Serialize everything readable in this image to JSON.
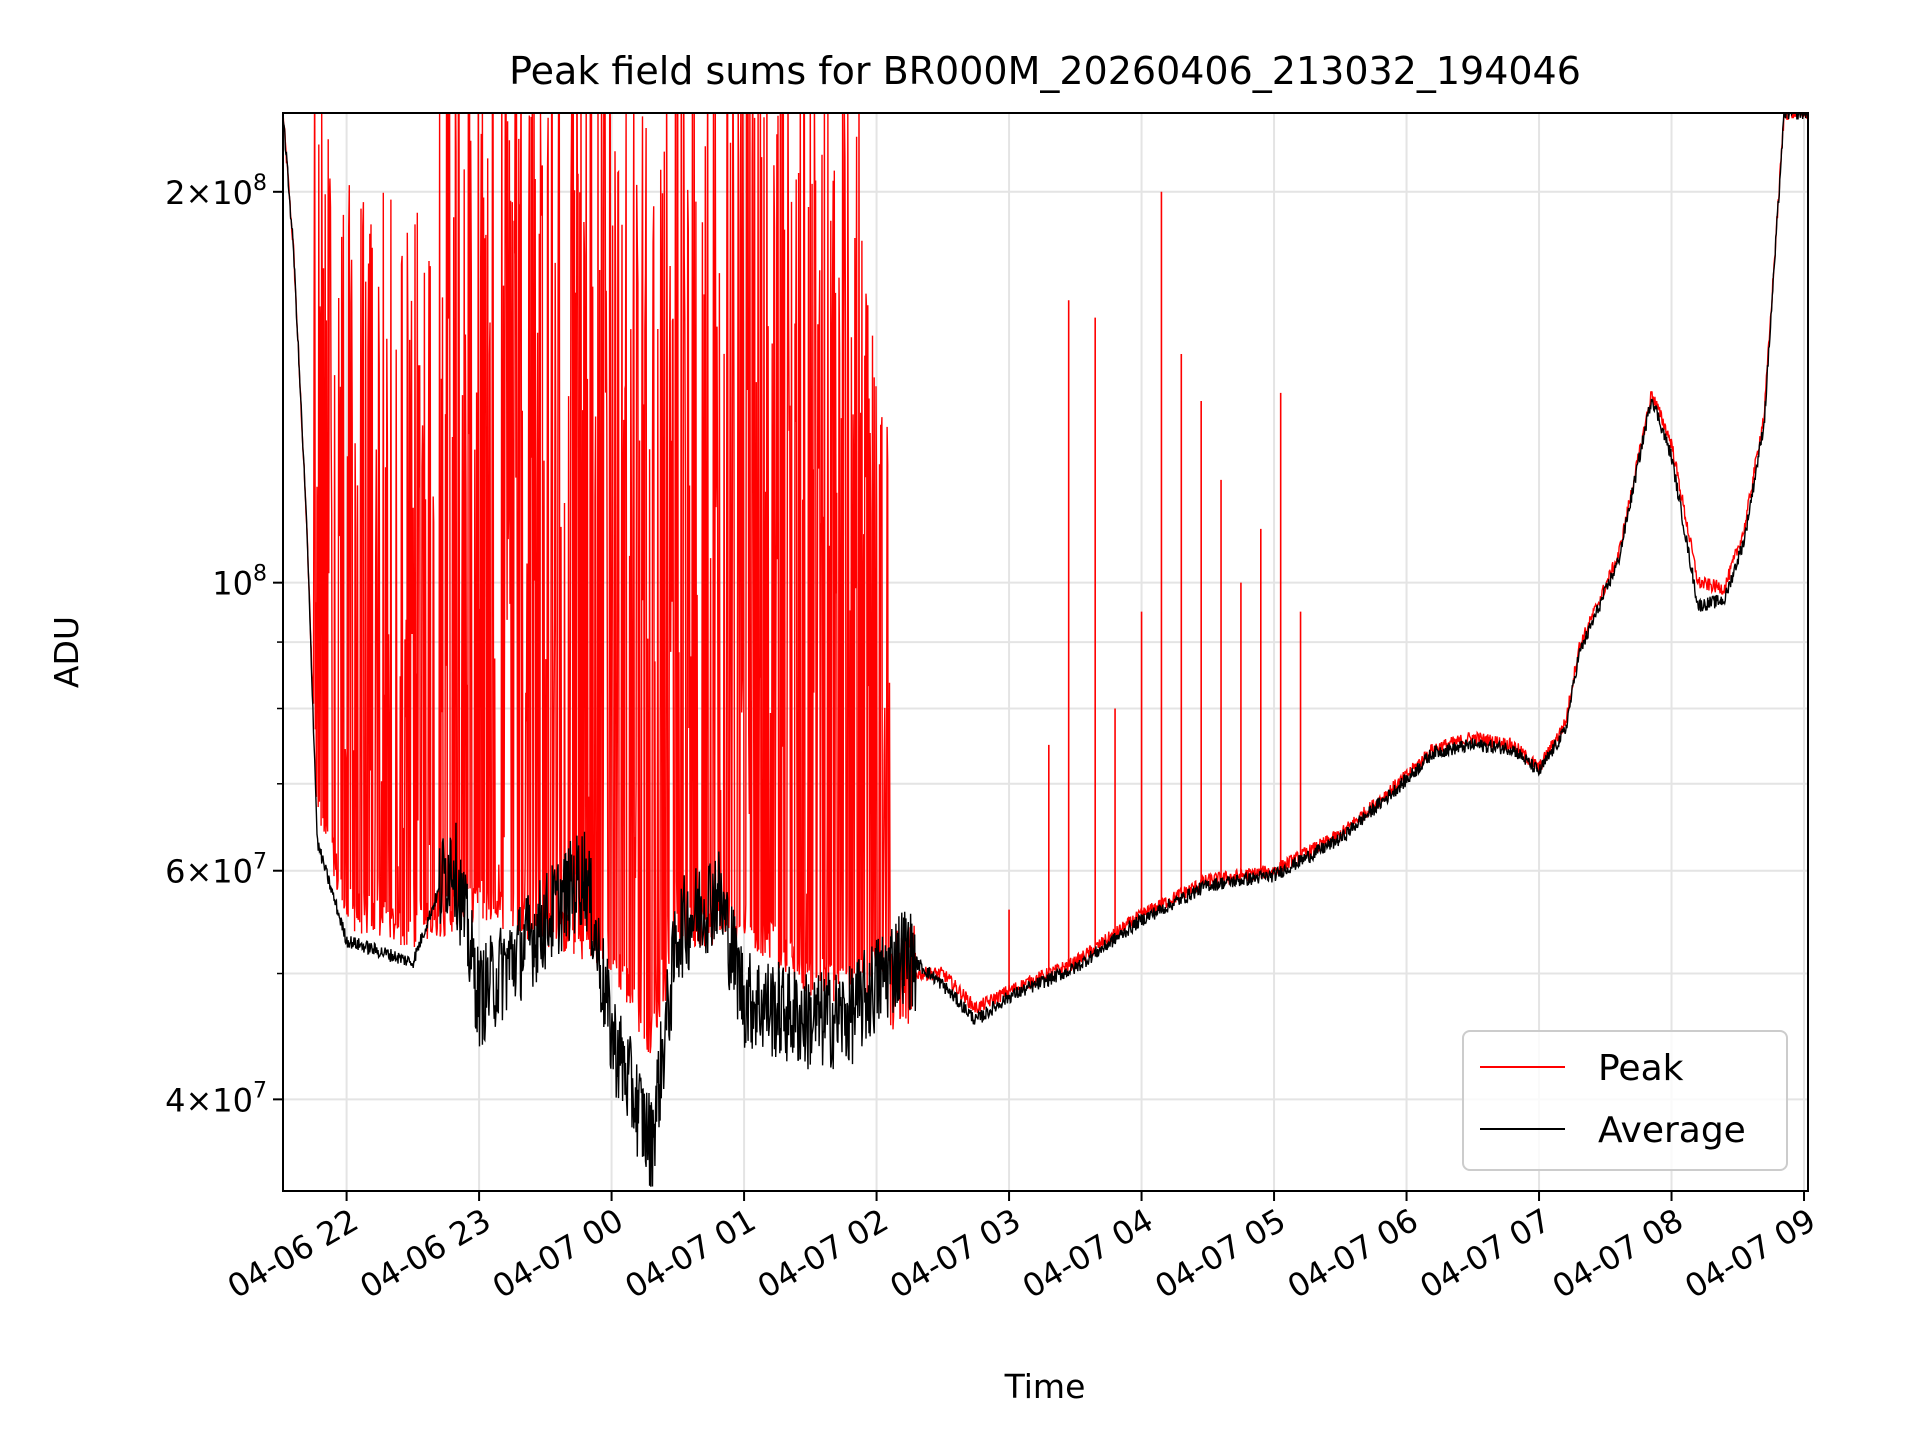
{
  "chart_data": {
    "type": "line",
    "title": "Peak field sums for BR000M_20260406_213032_194046",
    "xlabel": "Time",
    "ylabel": "ADU",
    "yscale": "log",
    "xlim_hours": [
      -0.48,
      11.03
    ],
    "ylim": [
      34000000,
      230000000
    ],
    "grid": true,
    "legend_position": "lower right",
    "x_ticks": [
      {
        "label": "04-06 22",
        "hours": 0
      },
      {
        "label": "04-06 23",
        "hours": 1
      },
      {
        "label": "04-07 00",
        "hours": 2
      },
      {
        "label": "04-07 01",
        "hours": 3
      },
      {
        "label": "04-07 02",
        "hours": 4
      },
      {
        "label": "04-07 03",
        "hours": 5
      },
      {
        "label": "04-07 04",
        "hours": 6
      },
      {
        "label": "04-07 05",
        "hours": 7
      },
      {
        "label": "04-07 06",
        "hours": 8
      },
      {
        "label": "04-07 07",
        "hours": 9
      },
      {
        "label": "04-07 08",
        "hours": 10
      },
      {
        "label": "04-07 09",
        "hours": 11
      }
    ],
    "y_ticks": [
      {
        "value": 40000000,
        "base": "4",
        "exp": "7"
      },
      {
        "value": 60000000,
        "base": "6",
        "exp": "7"
      },
      {
        "value": 100000000,
        "base": "",
        "exp": "8"
      },
      {
        "value": 200000000,
        "base": "2",
        "exp": "8"
      }
    ],
    "y_minor_ticks": [
      50000000,
      70000000,
      80000000,
      90000000,
      300000000
    ],
    "series": [
      {
        "name": "Peak",
        "color": "#ff0000",
        "envelope": [
          [
            -0.48,
            230000000
          ],
          [
            -0.4,
            180000000
          ],
          [
            -0.3,
            110000000
          ],
          [
            -0.22,
            65000000
          ],
          [
            0.0,
            54000000
          ],
          [
            0.5,
            52000000
          ],
          [
            1.0,
            55000000
          ],
          [
            2.0,
            50000000
          ],
          [
            2.3,
            43000000
          ],
          [
            2.5,
            52000000
          ],
          [
            3.0,
            53000000
          ],
          [
            3.5,
            48000000
          ],
          [
            3.8,
            47000000
          ],
          [
            4.2,
            50000000
          ],
          [
            4.5,
            50000000
          ],
          [
            4.75,
            47000000
          ],
          [
            5.0,
            48500000
          ],
          [
            5.5,
            51000000
          ],
          [
            6.0,
            55500000
          ],
          [
            6.5,
            59000000
          ],
          [
            7.0,
            60000000
          ],
          [
            7.5,
            64000000
          ],
          [
            8.0,
            71000000
          ],
          [
            8.2,
            74500000
          ],
          [
            8.5,
            76000000
          ],
          [
            8.8,
            75000000
          ],
          [
            9.0,
            72000000
          ],
          [
            9.2,
            78000000
          ],
          [
            9.3,
            89000000
          ],
          [
            9.6,
            105000000
          ],
          [
            9.85,
            140000000
          ],
          [
            10.0,
            128000000
          ],
          [
            10.2,
            100000000
          ],
          [
            10.4,
            99000000
          ],
          [
            10.55,
            110000000
          ],
          [
            10.7,
            135000000
          ],
          [
            10.85,
            230000000
          ],
          [
            11.0,
            230000000
          ]
        ],
        "spikes_hours": [
          5.0,
          5.3,
          5.45,
          5.65,
          5.8,
          6.0,
          6.15,
          6.3,
          6.45,
          6.6,
          6.75,
          6.9,
          7.05,
          7.2
        ],
        "spike_values": [
          56000000,
          75000000,
          165000000,
          160000000,
          80000000,
          95000000,
          200000000,
          150000000,
          138000000,
          120000000,
          100000000,
          110000000,
          140000000,
          95000000
        ]
      },
      {
        "name": "Average",
        "color": "#000000",
        "envelope": [
          [
            -0.48,
            230000000
          ],
          [
            -0.4,
            180000000
          ],
          [
            -0.3,
            110000000
          ],
          [
            -0.22,
            63000000
          ],
          [
            0.0,
            53000000
          ],
          [
            0.5,
            51000000
          ],
          [
            0.8,
            62000000
          ],
          [
            1.0,
            48000000
          ],
          [
            1.5,
            55000000
          ],
          [
            1.8,
            60000000
          ],
          [
            2.0,
            45000000
          ],
          [
            2.3,
            37000000
          ],
          [
            2.5,
            54000000
          ],
          [
            2.8,
            58000000
          ],
          [
            3.0,
            48000000
          ],
          [
            3.5,
            46000000
          ],
          [
            3.8,
            46500000
          ],
          [
            4.2,
            52000000
          ],
          [
            4.5,
            49000000
          ],
          [
            4.75,
            46000000
          ],
          [
            5.0,
            48000000
          ],
          [
            5.5,
            50500000
          ],
          [
            6.0,
            55000000
          ],
          [
            6.5,
            58500000
          ],
          [
            7.0,
            59500000
          ],
          [
            7.5,
            63500000
          ],
          [
            8.0,
            70500000
          ],
          [
            8.2,
            74000000
          ],
          [
            8.5,
            75000000
          ],
          [
            8.8,
            74500000
          ],
          [
            9.0,
            71500000
          ],
          [
            9.2,
            77000000
          ],
          [
            9.3,
            88000000
          ],
          [
            9.6,
            104000000
          ],
          [
            9.85,
            139000000
          ],
          [
            10.0,
            125000000
          ],
          [
            10.2,
            96000000
          ],
          [
            10.4,
            97000000
          ],
          [
            10.55,
            108000000
          ],
          [
            10.7,
            133000000
          ],
          [
            10.85,
            230000000
          ],
          [
            11.0,
            230000000
          ]
        ]
      }
    ]
  }
}
